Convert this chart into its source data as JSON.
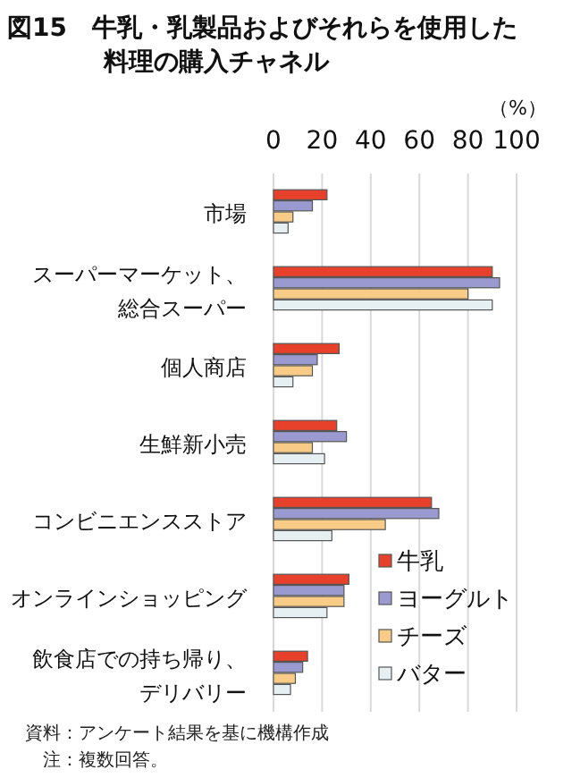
{
  "chart_data": {
    "type": "bar",
    "orientation": "horizontal",
    "title": "図15　牛乳・乳製品およびそれらを使用した料理の購入チャネル",
    "xlabel": "（%）",
    "categories": [
      "市場",
      "スーパーマーケット、総合スーパー",
      "個人商店",
      "生鮮新小売",
      "コンビニエンスストア",
      "オンラインショッピング",
      "飲食店での持ち帰り、デリバリー"
    ],
    "series": [
      {
        "name": "牛乳",
        "color": "#e8412b",
        "values": [
          22,
          90,
          27,
          26,
          65,
          31,
          14
        ]
      },
      {
        "name": "ヨーグルト",
        "color": "#9a9ad0",
        "values": [
          16,
          93,
          18,
          30,
          68,
          29,
          12
        ]
      },
      {
        "name": "チーズ",
        "color": "#f8cb86",
        "values": [
          8,
          80,
          16,
          16,
          46,
          29,
          9
        ]
      },
      {
        "name": "バター",
        "color": "#e6f0f2",
        "values": [
          6,
          90,
          8,
          21,
          24,
          22,
          7
        ]
      }
    ],
    "xlim": [
      0,
      100
    ],
    "xticks": [
      0,
      20,
      40,
      60,
      80,
      100
    ],
    "grid": "x",
    "legend": "bottom right",
    "annotations": [
      "資料：アンケート結果を基に機構作成",
      "　注：複数回答。"
    ]
  }
}
